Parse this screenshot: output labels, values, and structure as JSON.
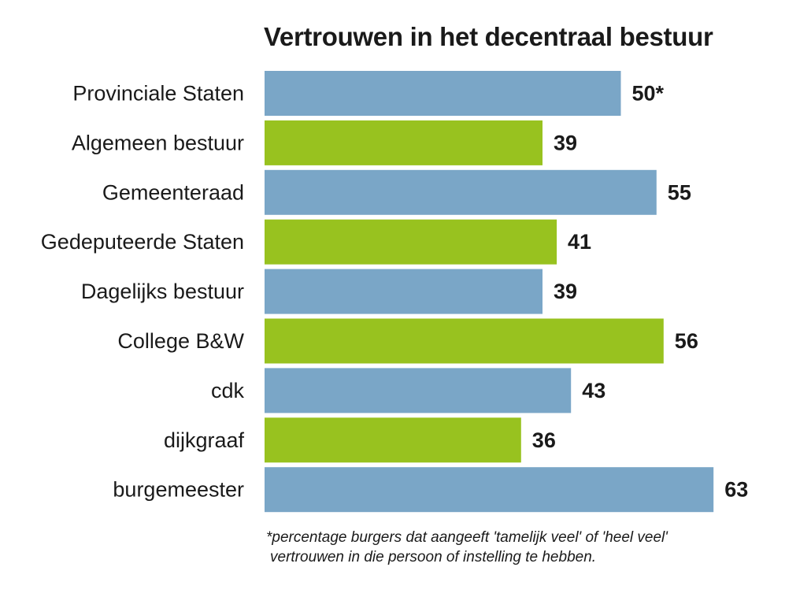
{
  "chart_data": {
    "type": "bar",
    "orientation": "horizontal",
    "title": "Vertrouwen in het decentraal bestuur",
    "categories": [
      "Provinciale Staten",
      "Algemeen bestuur",
      "Gemeenteraad",
      "Gedeputeerde Staten",
      "Dagelijks bestuur",
      "College B&W",
      "cdk",
      "dijkgraaf",
      "burgemeester"
    ],
    "values": [
      50,
      39,
      55,
      41,
      39,
      56,
      43,
      36,
      63
    ],
    "value_labels": [
      "50*",
      "39",
      "55",
      "41",
      "39",
      "56",
      "43",
      "36",
      "63"
    ],
    "bar_colors": [
      "#7aa6c7",
      "#98c21f",
      "#7aa6c7",
      "#98c21f",
      "#7aa6c7",
      "#98c21f",
      "#7aa6c7",
      "#98c21f",
      "#7aa6c7"
    ],
    "xlim": [
      0,
      63
    ],
    "grid": false,
    "footnote": [
      "*percentage burgers dat aangeeft 'tamelijk veel' of 'heel veel'",
      "vertrouwen in die persoon of instelling te hebben."
    ]
  }
}
